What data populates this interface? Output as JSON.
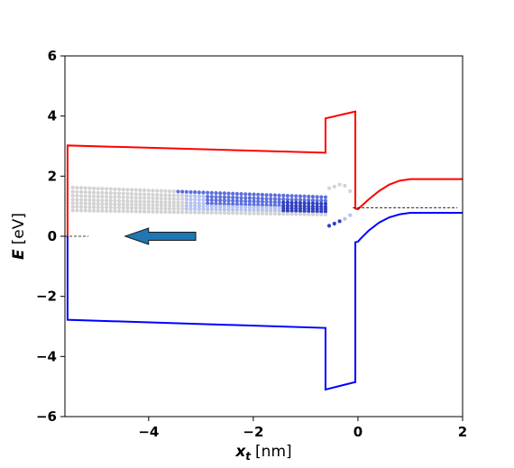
{
  "chart_data": {
    "type": "line",
    "xlabel": {
      "symbol": "x",
      "subscript": "t",
      "unit": "[nm]"
    },
    "ylabel": {
      "symbol": "E",
      "unit": "[eV]"
    },
    "xlim": [
      -5.6,
      2.0
    ],
    "ylim": [
      -6,
      6
    ],
    "xticks": [
      -4,
      -2,
      0,
      2
    ],
    "xtick_labels": [
      "−4",
      "−2",
      "0",
      "2"
    ],
    "yticks": [
      -6,
      -4,
      -2,
      0,
      2,
      4,
      6
    ],
    "ytick_labels": [
      "−6",
      "−4",
      "−2",
      "0",
      "2",
      "4",
      "6"
    ],
    "grid": false,
    "series": [
      {
        "color": "#ff0000",
        "x": [
          -5.55,
          -5.55,
          -0.62,
          -0.62,
          -0.05,
          -0.05,
          0.0,
          0.05,
          0.2,
          0.4,
          0.6,
          0.8,
          1.0,
          2.0
        ],
        "y": [
          -0.05,
          3.02,
          2.78,
          3.92,
          4.15,
          0.92,
          0.9,
          0.98,
          1.22,
          1.5,
          1.72,
          1.85,
          1.9,
          1.9
        ]
      },
      {
        "color": "#0000ff",
        "x": [
          -5.55,
          -5.55,
          -0.62,
          -0.62,
          -0.05,
          -0.05,
          0.0,
          0.05,
          0.2,
          0.4,
          0.6,
          0.8,
          1.0,
          2.0
        ],
        "y": [
          0.0,
          -2.78,
          -3.05,
          -5.1,
          -4.85,
          -0.2,
          -0.18,
          -0.08,
          0.18,
          0.45,
          0.63,
          0.73,
          0.78,
          0.78
        ]
      }
    ],
    "dashed_lines": [
      {
        "x": [
          -5.6,
          -5.15
        ],
        "y": [
          0.0,
          0.0
        ]
      },
      {
        "x": [
          -0.1,
          1.9
        ],
        "y": [
          0.95,
          0.95
        ]
      }
    ],
    "arrow": {
      "from": [
        -3.1,
        0.0
      ],
      "to": [
        -4.45,
        0.0
      ],
      "color": "#1f77b4"
    },
    "scatter_rows": [
      {
        "x_start": -5.45,
        "x_end": -0.62,
        "y_start": 1.62,
        "y_end": 1.3
      },
      {
        "x_start": -5.45,
        "x_end": -0.62,
        "y_start": 1.48,
        "y_end": 1.18
      },
      {
        "x_start": -5.45,
        "x_end": -0.62,
        "y_start": 1.35,
        "y_end": 1.08
      },
      {
        "x_start": -5.45,
        "x_end": -0.62,
        "y_start": 1.22,
        "y_end": 0.98
      },
      {
        "x_start": -5.45,
        "x_end": -0.62,
        "y_start": 1.1,
        "y_end": 0.9
      },
      {
        "x_start": -5.45,
        "x_end": -0.62,
        "y_start": 0.98,
        "y_end": 0.82
      },
      {
        "x_start": -5.45,
        "x_end": -0.62,
        "y_start": 0.86,
        "y_end": 0.72
      }
    ],
    "scatter_colors": [
      "#d3d3d3",
      "#b6c3ef",
      "#5b6fdc",
      "#2f3fbf"
    ],
    "tail_points": {
      "x": [
        -0.55,
        -0.45,
        -0.35,
        -0.25,
        -0.15
      ],
      "y_top": [
        1.6,
        1.65,
        1.72,
        1.68,
        1.5
      ],
      "y_bottom": [
        0.35,
        0.42,
        0.5,
        0.58,
        0.7
      ]
    }
  }
}
